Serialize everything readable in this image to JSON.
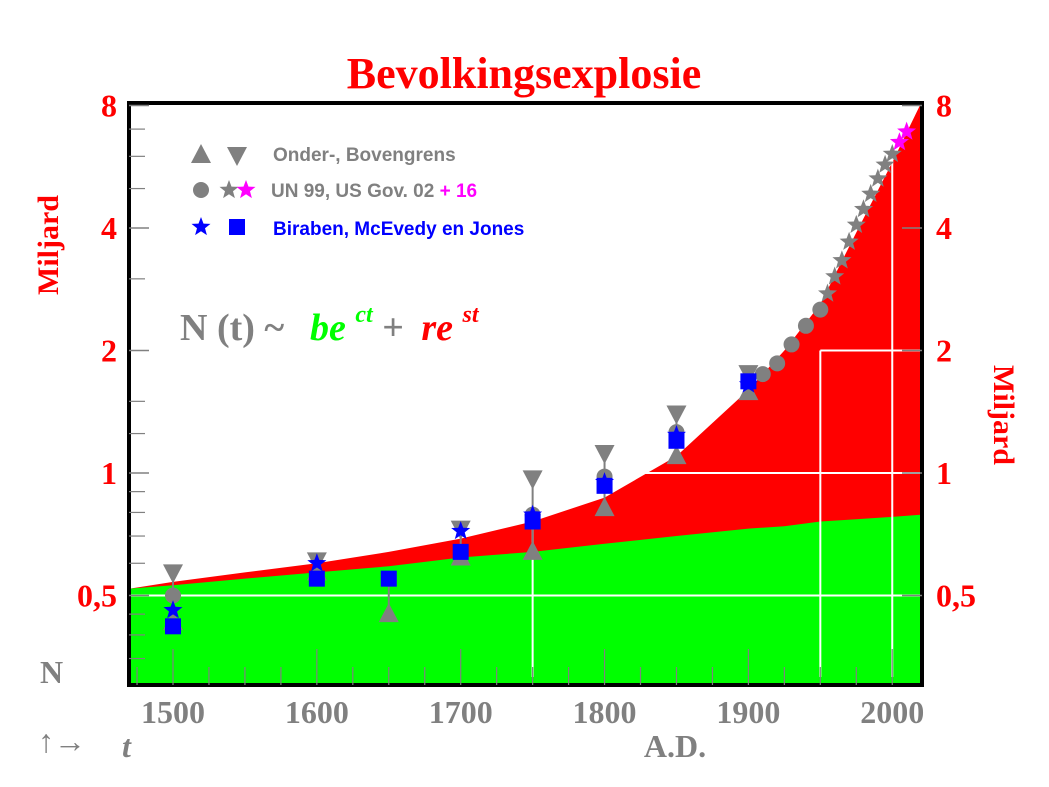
{
  "chart_data": {
    "type": "area",
    "title": "Bevolkingsexplosie",
    "ylabel_left": "Miljard",
    "ylabel_right": "Miljard",
    "xlabel": "A.D.",
    "corner_label": {
      "n": "N",
      "arrows": "↑→",
      "t": "t"
    },
    "y_scale": "log",
    "xlim": [
      1470,
      2022
    ],
    "ylim": [
      0.3,
      8
    ],
    "x_ticks": [
      "1500",
      "1600",
      "1700",
      "1800",
      "1900",
      "2000"
    ],
    "y_ticks": [
      {
        "value": 8,
        "label": "8"
      },
      {
        "value": 4,
        "label": "4"
      },
      {
        "value": 2,
        "label": "2"
      },
      {
        "value": 1,
        "label": "1"
      },
      {
        "value": 0.5,
        "label": "0,5"
      }
    ],
    "formula": {
      "lhs": "N (t) ~",
      "green_term": "be",
      "green_exp": "ct",
      "plus": "+",
      "red_term": "re",
      "red_exp": "st"
    },
    "bands": {
      "years": [
        1470,
        1500,
        1550,
        1600,
        1650,
        1700,
        1750,
        1800,
        1850,
        1900,
        1925,
        1950,
        1975,
        2000,
        2022
      ],
      "green_top": [
        0.52,
        0.53,
        0.55,
        0.57,
        0.59,
        0.62,
        0.64,
        0.67,
        0.7,
        0.73,
        0.74,
        0.76,
        0.77,
        0.78,
        0.79
      ],
      "red_top": [
        0.52,
        0.54,
        0.57,
        0.6,
        0.64,
        0.69,
        0.76,
        0.87,
        1.1,
        1.6,
        2.0,
        2.6,
        3.9,
        5.8,
        8.2
      ],
      "green_color": "#00ff00",
      "red_color": "#ff0000"
    },
    "legend": [
      {
        "label": "Onder-, Bovengrens",
        "color": "#808080",
        "symbols": [
          "triangle-up",
          "triangle-down"
        ]
      },
      {
        "label": "UN 99, US Gov. 02",
        "extra": "+ 16",
        "color": "#808080",
        "extra_color": "#ff00ff",
        "symbols": [
          "circle",
          "star",
          "star-magenta"
        ]
      },
      {
        "label": "Biraben, McEvedy en Jones",
        "color": "#0000ff",
        "symbols": [
          "star",
          "square"
        ]
      }
    ],
    "series": [
      {
        "name": "Ondergrens",
        "marker": "triangle-up",
        "color": "#808080",
        "x": [
          1500,
          1600,
          1650,
          1700,
          1750,
          1800,
          1850,
          1900
        ],
        "y": [
          0.43,
          0.57,
          0.45,
          0.62,
          0.64,
          0.82,
          1.1,
          1.58
        ]
      },
      {
        "name": "Bovengrens",
        "marker": "triangle-down",
        "color": "#808080",
        "x": [
          1500,
          1600,
          1700,
          1750,
          1800,
          1850,
          1900
        ],
        "y": [
          0.57,
          0.61,
          0.73,
          0.97,
          1.12,
          1.4,
          1.76
        ]
      },
      {
        "name": "UN 99",
        "marker": "circle",
        "color": "#808080",
        "x": [
          1500,
          1750,
          1800,
          1850,
          1910,
          1920,
          1930,
          1940,
          1950
        ],
        "y": [
          0.5,
          0.79,
          0.98,
          1.26,
          1.75,
          1.86,
          2.07,
          2.3,
          2.52
        ]
      },
      {
        "name": "US Gov. 02",
        "marker": "star",
        "color": "#808080",
        "x": [
          1955,
          1960,
          1965,
          1970,
          1975,
          1980,
          1985,
          1990,
          1995,
          2000
        ],
        "y": [
          2.76,
          3.04,
          3.33,
          3.7,
          4.07,
          4.45,
          4.85,
          5.29,
          5.72,
          6.08
        ]
      },
      {
        "name": "+ 16",
        "marker": "star",
        "color": "#ff00ff",
        "x": [
          2005,
          2010
        ],
        "y": [
          6.5,
          6.9
        ]
      },
      {
        "name": "Biraben",
        "marker": "star",
        "color": "#0000ff",
        "x": [
          1500,
          1600,
          1700,
          1750,
          1800,
          1850,
          1900
        ],
        "y": [
          0.46,
          0.6,
          0.72,
          0.79,
          0.95,
          1.24,
          1.65
        ]
      },
      {
        "name": "McEvedy en Jones",
        "marker": "square",
        "color": "#0000ff",
        "x": [
          1500,
          1600,
          1650,
          1700,
          1750,
          1800,
          1850,
          1900
        ],
        "y": [
          0.42,
          0.55,
          0.55,
          0.64,
          0.76,
          0.93,
          1.2,
          1.68
        ]
      }
    ]
  }
}
